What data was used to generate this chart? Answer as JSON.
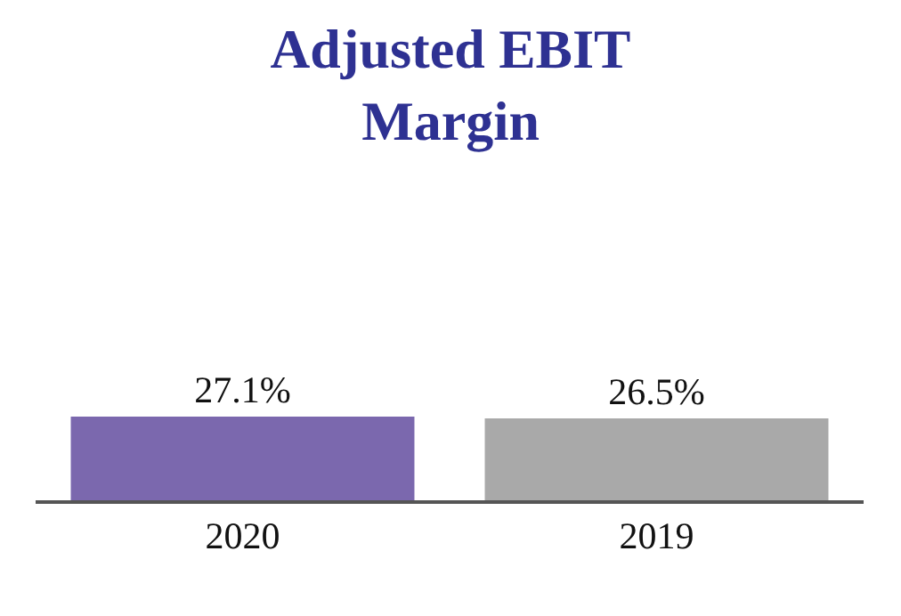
{
  "chart_data": {
    "type": "bar",
    "title": "Adjusted EBIT\nMargin",
    "categories": [
      "2020",
      "2019"
    ],
    "series": [
      {
        "colors": [
          "#7b68ae",
          "#a9a9a9"
        ],
        "values": [
          27.1,
          26.5
        ],
        "value_labels": [
          "27.1%",
          "26.5%"
        ]
      }
    ],
    "ylim": [
      0,
      27.1
    ],
    "tick_labels": "x"
  }
}
